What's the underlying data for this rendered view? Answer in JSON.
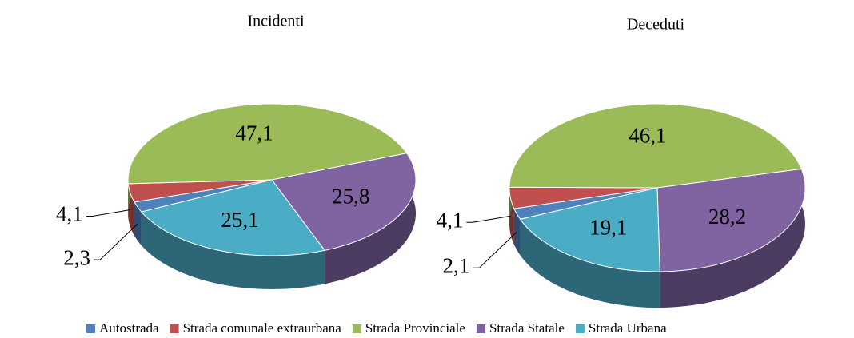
{
  "chart_data": [
    {
      "type": "pie",
      "title": "Incidenti",
      "categories": [
        "Autostrada",
        "Strada comunale extraurbana",
        "Strada Provinciale",
        "Strada Statale",
        "Strada Urbana"
      ],
      "values": [
        2.3,
        4.1,
        47.1,
        25.8,
        25.1
      ],
      "value_labels": [
        "2,3",
        "4,1",
        "47,1",
        "25,8",
        "25,1"
      ],
      "colors": [
        "#4f81bd",
        "#c0504d",
        "#9bbb59",
        "#8064a2",
        "#4bacc6"
      ]
    },
    {
      "type": "pie",
      "title": "Deceduti",
      "categories": [
        "Autostrada",
        "Strada comunale extraurbana",
        "Strada Provinciale",
        "Strada Statale",
        "Strada Urbana"
      ],
      "values": [
        2.1,
        4.1,
        46.1,
        28.2,
        19.1
      ],
      "value_labels": [
        "2,1",
        "4,1",
        "46,1",
        "28,2",
        "19,1"
      ],
      "colors": [
        "#4f81bd",
        "#c0504d",
        "#9bbb59",
        "#8064a2",
        "#4bacc6"
      ]
    }
  ]
}
